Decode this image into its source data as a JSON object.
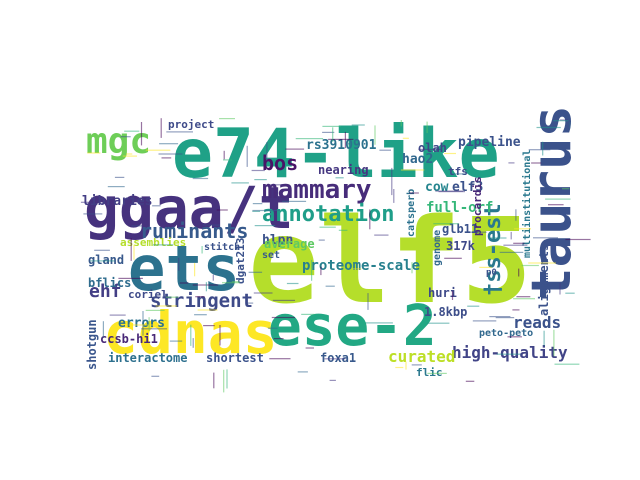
{
  "word_cloud": {
    "palette": "viridis",
    "background": "#ffffff",
    "words": [
      {
        "text": "elf5",
        "color": "#b5de2b"
      },
      {
        "text": "e74-like",
        "color": "#1fa187"
      },
      {
        "text": "taurus",
        "color": "#3b528b"
      },
      {
        "text": "ggaa/t",
        "color": "#46327e"
      },
      {
        "text": "ets",
        "color": "#2c728e"
      },
      {
        "text": "cdnas",
        "color": "#fde725"
      },
      {
        "text": "ese-2",
        "color": "#22a884"
      },
      {
        "text": "mgc",
        "color": "#6ece58"
      },
      {
        "text": "mammary",
        "color": "#472c7a"
      },
      {
        "text": "annotation",
        "color": "#1f9e89"
      },
      {
        "text": "ruminants",
        "color": "#375a8c"
      },
      {
        "text": "bos",
        "color": "#481467"
      },
      {
        "text": "†ss-est",
        "color": "#2a788e"
      },
      {
        "text": "stringent",
        "color": "#3e4a89"
      },
      {
        "text": "high-quality",
        "color": "#414487"
      },
      {
        "text": "curated",
        "color": "#bddf26"
      },
      {
        "text": "reads",
        "color": "#3b528b"
      },
      {
        "text": "ehf",
        "color": "#433e85"
      },
      {
        "text": "proteome-scale",
        "color": "#27808e"
      },
      {
        "text": "full-orf",
        "color": "#35b779"
      },
      {
        "text": "rs3910901",
        "color": "#2c728e"
      },
      {
        "text": "hao2",
        "color": "#31688e"
      },
      {
        "text": "olah",
        "color": "#3e4989"
      },
      {
        "text": "libraries",
        "color": "#433e85"
      },
      {
        "text": "pipeline",
        "color": "#3b528b"
      },
      {
        "text": "project",
        "color": "#3e4a89"
      },
      {
        "text": "nearing",
        "color": "#453781"
      },
      {
        "text": "hlpn",
        "color": "#3b528b"
      },
      {
        "text": "cow",
        "color": "#25858e"
      },
      {
        "text": "elf3",
        "color": "#3b528b"
      },
      {
        "text": "gland",
        "color": "#38598c"
      },
      {
        "text": "bflics",
        "color": "#2f6c8e"
      },
      {
        "text": "coriel",
        "color": "#3e4a89"
      },
      {
        "text": "errors",
        "color": "#2c728e"
      },
      {
        "text": "ccsb-hi1",
        "color": "#482878"
      },
      {
        "text": "shotgun",
        "color": "#39558c"
      },
      {
        "text": "interactome",
        "color": "#2d708e"
      },
      {
        "text": "shortest",
        "color": "#3b528b"
      },
      {
        "text": "foxa1",
        "color": "#38598c"
      },
      {
        "text": "flic",
        "color": "#2a788e"
      },
      {
        "text": "huri",
        "color": "#3e4989"
      },
      {
        "text": "1.8kbp",
        "color": "#3d4e8a"
      },
      {
        "text": "peto-peto",
        "color": "#31688e"
      },
      {
        "text": "average",
        "color": "#5ec962"
      },
      {
        "text": "assemblies",
        "color": "#b5de2b"
      },
      {
        "text": "stitch",
        "color": "#3b528b"
      },
      {
        "text": "dgat213",
        "color": "#3b528b"
      },
      {
        "text": "catsperb",
        "color": "#2c728e"
      },
      {
        "text": "genome",
        "color": "#31688e"
      },
      {
        "text": "317k",
        "color": "#3e4989"
      },
      {
        "text": "glb11",
        "color": "#3b528b"
      },
      {
        "text": "multiinstitutional",
        "color": "#2a788e"
      },
      {
        "text": "alignments",
        "color": "#3b528b"
      },
      {
        "text": "procardis",
        "color": "#482878"
      },
      {
        "text": "tfs",
        "color": "#3e4a89"
      },
      {
        "text": "set",
        "color": "#38598c"
      },
      {
        "text": "p0",
        "color": "#3b528b"
      }
    ]
  }
}
